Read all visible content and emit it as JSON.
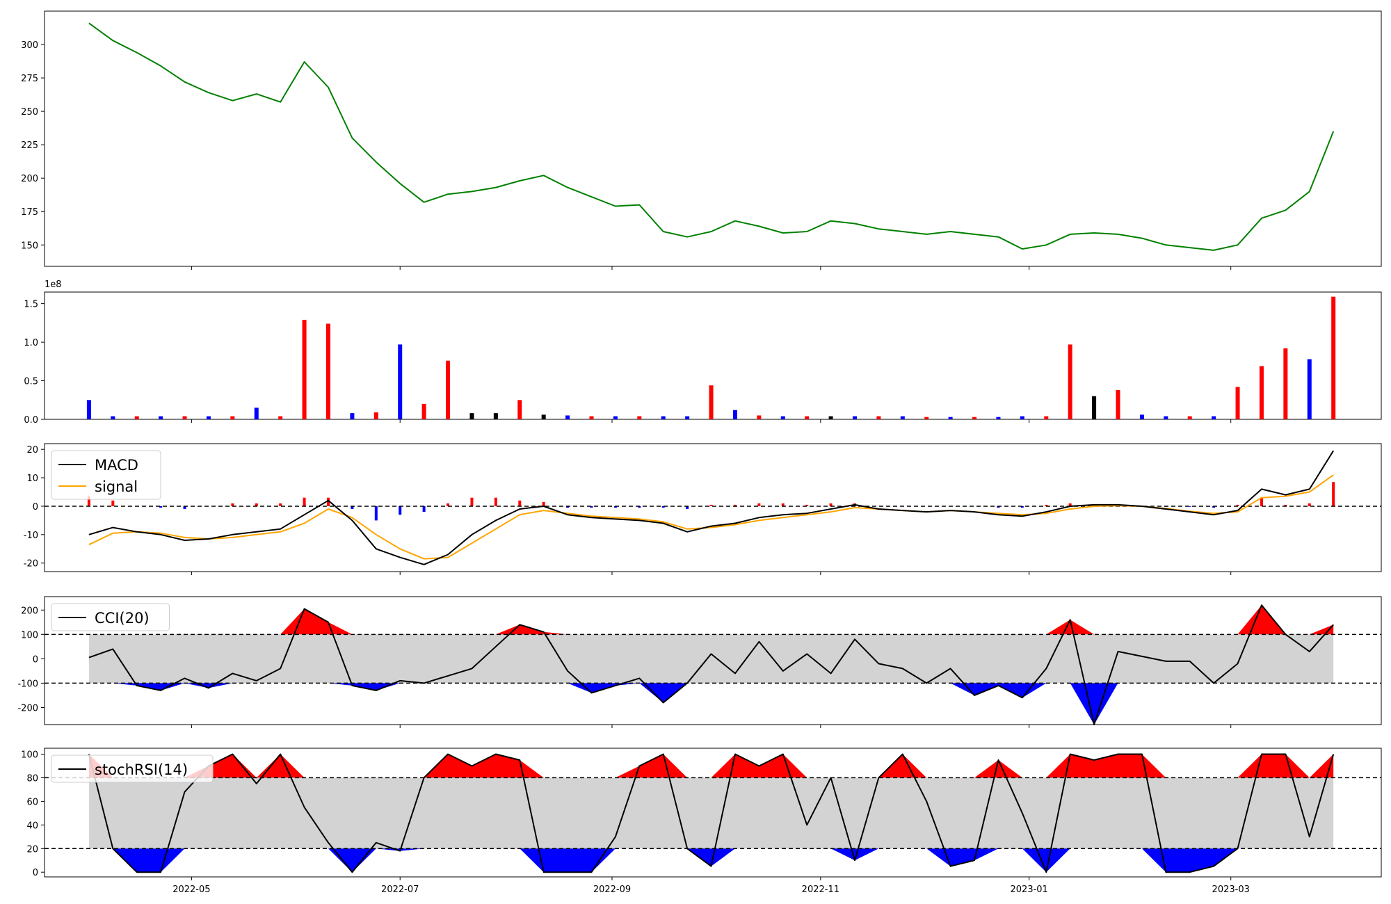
{
  "x_dates": [
    "2022-04-01",
    "2022-04-08",
    "2022-04-15",
    "2022-04-22",
    "2022-04-29",
    "2022-05-06",
    "2022-05-13",
    "2022-05-20",
    "2022-05-27",
    "2022-06-03",
    "2022-06-10",
    "2022-06-17",
    "2022-06-24",
    "2022-07-01",
    "2022-07-08",
    "2022-07-15",
    "2022-07-22",
    "2022-07-29",
    "2022-08-05",
    "2022-08-12",
    "2022-08-19",
    "2022-08-26",
    "2022-09-02",
    "2022-09-09",
    "2022-09-16",
    "2022-09-23",
    "2022-09-30",
    "2022-10-07",
    "2022-10-14",
    "2022-10-21",
    "2022-10-28",
    "2022-11-04",
    "2022-11-11",
    "2022-11-18",
    "2022-11-25",
    "2022-12-02",
    "2022-12-09",
    "2022-12-16",
    "2022-12-23",
    "2022-12-30",
    "2023-01-06",
    "2023-01-13",
    "2023-01-20",
    "2023-01-27",
    "2023-02-03",
    "2023-02-10",
    "2023-02-17",
    "2023-02-24",
    "2023-03-03",
    "2023-03-10",
    "2023-03-17",
    "2023-03-24",
    "2023-03-31"
  ],
  "x_ticks": [
    "2022-05",
    "2022-07",
    "2022-09",
    "2022-11",
    "2023-01",
    "2023-03"
  ],
  "chart_data": [
    {
      "panel": "price",
      "type": "line",
      "color": "#008000",
      "x": [
        "2022-04-01",
        "2022-04-08",
        "2022-04-15",
        "2022-04-22",
        "2022-04-29",
        "2022-05-06",
        "2022-05-13",
        "2022-05-20",
        "2022-05-27",
        "2022-06-03",
        "2022-06-10",
        "2022-06-17",
        "2022-06-24",
        "2022-07-01",
        "2022-07-08",
        "2022-07-15",
        "2022-07-22",
        "2022-07-29",
        "2022-08-05",
        "2022-08-12",
        "2022-08-19",
        "2022-08-26",
        "2022-09-02",
        "2022-09-09",
        "2022-09-16",
        "2022-09-23",
        "2022-09-30",
        "2022-10-07",
        "2022-10-14",
        "2022-10-21",
        "2022-10-28",
        "2022-11-04",
        "2022-11-11",
        "2022-11-18",
        "2022-11-25",
        "2022-12-02",
        "2022-12-09",
        "2022-12-16",
        "2022-12-23",
        "2022-12-30",
        "2023-01-06",
        "2023-01-13",
        "2023-01-20",
        "2023-01-27",
        "2023-02-03",
        "2023-02-10",
        "2023-02-17",
        "2023-02-24",
        "2023-03-03",
        "2023-03-10",
        "2023-03-17",
        "2023-03-24",
        "2023-03-31"
      ],
      "values": [
        316,
        303,
        294,
        284,
        272,
        264,
        258,
        263,
        257,
        287,
        268,
        230,
        212,
        196,
        182,
        188,
        190,
        193,
        198,
        202,
        193,
        186,
        179,
        180,
        160,
        156,
        160,
        168,
        164,
        159,
        160,
        168,
        166,
        162,
        160,
        158,
        160,
        158,
        156,
        147,
        150,
        158,
        159,
        158,
        155,
        150,
        148,
        146,
        150,
        170,
        176,
        190,
        235
      ],
      "yticks": [
        150,
        175,
        200,
        225,
        250,
        275,
        300
      ],
      "ylim": [
        134,
        325
      ]
    },
    {
      "panel": "volume",
      "type": "bar",
      "ylim": [
        0,
        1.65
      ],
      "yticks": [
        "0.0",
        "0.5",
        "1.0",
        "1.5"
      ],
      "scale_label": "1e8",
      "x": [
        "2022-04-01",
        "2022-04-08",
        "2022-04-15",
        "2022-04-22",
        "2022-04-29",
        "2022-05-06",
        "2022-05-13",
        "2022-05-20",
        "2022-05-27",
        "2022-06-03",
        "2022-06-10",
        "2022-06-17",
        "2022-06-24",
        "2022-07-01",
        "2022-07-08",
        "2022-07-15",
        "2022-07-22",
        "2022-07-29",
        "2022-08-05",
        "2022-08-12",
        "2022-08-19",
        "2022-08-26",
        "2022-09-02",
        "2022-09-09",
        "2022-09-16",
        "2022-09-23",
        "2022-09-30",
        "2022-10-07",
        "2022-10-14",
        "2022-10-21",
        "2022-10-28",
        "2022-11-04",
        "2022-11-11",
        "2022-11-18",
        "2022-11-25",
        "2022-12-02",
        "2022-12-09",
        "2022-12-16",
        "2022-12-23",
        "2022-12-30",
        "2023-01-06",
        "2023-01-13",
        "2023-01-20",
        "2023-01-27",
        "2023-02-03",
        "2023-02-10",
        "2023-02-17",
        "2023-02-24",
        "2023-03-03",
        "2023-03-10",
        "2023-03-17",
        "2023-03-24",
        "2023-03-31"
      ],
      "values": [
        0.25,
        0.04,
        0.04,
        0.04,
        0.04,
        0.04,
        0.04,
        0.15,
        0.04,
        1.29,
        1.24,
        0.08,
        0.09,
        0.97,
        0.2,
        0.76,
        0.08,
        0.08,
        0.25,
        0.06,
        0.05,
        0.04,
        0.04,
        0.04,
        0.04,
        0.04,
        0.44,
        0.12,
        0.05,
        0.04,
        0.04,
        0.04,
        0.04,
        0.04,
        0.04,
        0.03,
        0.03,
        0.03,
        0.03,
        0.04,
        0.04,
        0.97,
        0.3,
        0.38,
        0.06,
        0.04,
        0.04,
        0.04,
        0.42,
        0.69,
        0.92,
        0.78,
        1.59
      ],
      "colors": [
        "blue",
        "blue",
        "red",
        "blue",
        "red",
        "blue",
        "red",
        "blue",
        "red",
        "red",
        "red",
        "blue",
        "red",
        "blue",
        "red",
        "red",
        "black",
        "black",
        "red",
        "black",
        "blue",
        "red",
        "blue",
        "red",
        "blue",
        "blue",
        "red",
        "blue",
        "red",
        "blue",
        "red",
        "black",
        "blue",
        "red",
        "blue",
        "red",
        "blue",
        "red",
        "blue",
        "blue",
        "red",
        "red",
        "black",
        "red",
        "blue",
        "blue",
        "red",
        "blue",
        "red",
        "red",
        "red",
        "blue",
        "red"
      ]
    },
    {
      "panel": "macd",
      "type": "line",
      "legend": [
        "MACD",
        "signal"
      ],
      "yticks": [
        -20,
        -10,
        0,
        10,
        20
      ],
      "ylim": [
        -23,
        22
      ],
      "x": [
        "2022-04-01",
        "2022-04-08",
        "2022-04-15",
        "2022-04-22",
        "2022-04-29",
        "2022-05-06",
        "2022-05-13",
        "2022-05-20",
        "2022-05-27",
        "2022-06-03",
        "2022-06-10",
        "2022-06-17",
        "2022-06-24",
        "2022-07-01",
        "2022-07-08",
        "2022-07-15",
        "2022-07-22",
        "2022-07-29",
        "2022-08-05",
        "2022-08-12",
        "2022-08-19",
        "2022-08-26",
        "2022-09-02",
        "2022-09-09",
        "2022-09-16",
        "2022-09-23",
        "2022-09-30",
        "2022-10-07",
        "2022-10-14",
        "2022-10-21",
        "2022-10-28",
        "2022-11-04",
        "2022-11-11",
        "2022-11-18",
        "2022-11-25",
        "2022-12-02",
        "2022-12-09",
        "2022-12-16",
        "2022-12-23",
        "2022-12-30",
        "2023-01-06",
        "2023-01-13",
        "2023-01-20",
        "2023-01-27",
        "2023-02-03",
        "2023-02-10",
        "2023-02-17",
        "2023-02-24",
        "2023-03-03",
        "2023-03-10",
        "2023-03-17",
        "2023-03-24",
        "2023-03-31"
      ],
      "series": [
        {
          "name": "MACD",
          "color": "#000000",
          "values": [
            -10,
            -7.5,
            -9,
            -10,
            -12,
            -11.5,
            -10,
            -9,
            -8,
            -3,
            2,
            -5,
            -15,
            -18,
            -20.5,
            -17,
            -10,
            -5,
            -1,
            0,
            -3,
            -4,
            -4.5,
            -5,
            -6,
            -9,
            -7,
            -6,
            -4,
            -3,
            -2.5,
            -1,
            0.5,
            -1,
            -1.5,
            -2,
            -1.5,
            -2,
            -3,
            -3.5,
            -2,
            0,
            0.5,
            0.5,
            0,
            -1,
            -2,
            -3,
            -1.5,
            6,
            4,
            6,
            19.5
          ]
        },
        {
          "name": "signal",
          "color": "#FFA500",
          "values": [
            -13.5,
            -9.5,
            -9,
            -9.5,
            -11,
            -11.5,
            -11,
            -10,
            -9,
            -6,
            -1,
            -4,
            -10,
            -15,
            -18.5,
            -18,
            -13,
            -8,
            -3,
            -1.5,
            -2.5,
            -3.5,
            -4,
            -4.5,
            -5.5,
            -8,
            -7.5,
            -6.5,
            -5,
            -4,
            -3,
            -2,
            -0.5,
            -1,
            -1.5,
            -2,
            -1.5,
            -2,
            -2.5,
            -3,
            -2.5,
            -1,
            0,
            0.2,
            0,
            -0.8,
            -1.8,
            -2.5,
            -2,
            3,
            3.5,
            5,
            11
          ]
        },
        {
          "name": "histogram",
          "values": [
            3.5,
            2,
            0,
            -0.5,
            -1,
            0,
            1,
            1,
            1,
            3,
            3,
            -1,
            -5,
            -3,
            -2,
            1,
            3,
            3,
            2,
            1.5,
            -0.5,
            -0.5,
            -0.5,
            -0.5,
            -0.5,
            -1,
            0.5,
            0.5,
            1,
            1,
            0.5,
            1,
            1,
            0,
            0,
            0,
            0,
            0,
            -0.5,
            -0.5,
            0.5,
            1,
            0.5,
            0.3,
            0,
            -0.2,
            -0.2,
            -0.5,
            0.5,
            3,
            0.5,
            1,
            8.5
          ]
        }
      ]
    },
    {
      "panel": "cci",
      "type": "area",
      "legend": "CCI(20)",
      "yticks": [
        -200,
        -100,
        0,
        100,
        200
      ],
      "ylim": [
        -270,
        255
      ],
      "thresholds": [
        -100,
        100
      ],
      "colors": {
        "above": "#FF0000",
        "below": "#0000FF",
        "band": "#D3D3D3"
      },
      "x": [
        "2022-04-01",
        "2022-04-08",
        "2022-04-15",
        "2022-04-22",
        "2022-04-29",
        "2022-05-06",
        "2022-05-13",
        "2022-05-20",
        "2022-05-27",
        "2022-06-03",
        "2022-06-10",
        "2022-06-17",
        "2022-06-24",
        "2022-07-01",
        "2022-07-08",
        "2022-07-15",
        "2022-07-22",
        "2022-07-29",
        "2022-08-05",
        "2022-08-12",
        "2022-08-19",
        "2022-08-26",
        "2022-09-02",
        "2022-09-09",
        "2022-09-16",
        "2022-09-23",
        "2022-09-30",
        "2022-10-07",
        "2022-10-14",
        "2022-10-21",
        "2022-10-28",
        "2022-11-04",
        "2022-11-11",
        "2022-11-18",
        "2022-11-25",
        "2022-12-02",
        "2022-12-09",
        "2022-12-16",
        "2022-12-23",
        "2022-12-30",
        "2023-01-06",
        "2023-01-13",
        "2023-01-20",
        "2023-01-27",
        "2023-02-03",
        "2023-02-10",
        "2023-02-17",
        "2023-02-24",
        "2023-03-03",
        "2023-03-10",
        "2023-03-17",
        "2023-03-24",
        "2023-03-31"
      ],
      "values": [
        5,
        40,
        -110,
        -130,
        -80,
        -120,
        -60,
        -90,
        -40,
        205,
        150,
        -110,
        -130,
        -90,
        -100,
        -70,
        -40,
        50,
        140,
        110,
        -50,
        -140,
        -110,
        -80,
        -180,
        -100,
        20,
        -60,
        70,
        -50,
        20,
        -60,
        80,
        -20,
        -40,
        -100,
        -40,
        -150,
        -110,
        -160,
        -40,
        160,
        -270,
        30,
        10,
        -10,
        -10,
        -100,
        -20,
        220,
        100,
        30,
        140
      ]
    },
    {
      "panel": "stochrsi",
      "type": "area",
      "legend": "stochRSI(14)",
      "yticks": [
        0,
        20,
        40,
        60,
        80,
        100
      ],
      "ylim": [
        -4,
        105
      ],
      "thresholds": [
        20,
        80
      ],
      "colors": {
        "above": "#FF0000",
        "below": "#0000FF",
        "band": "#D3D3D3"
      },
      "x": [
        "2022-04-01",
        "2022-04-08",
        "2022-04-15",
        "2022-04-22",
        "2022-04-29",
        "2022-05-06",
        "2022-05-13",
        "2022-05-20",
        "2022-05-27",
        "2022-06-03",
        "2022-06-10",
        "2022-06-17",
        "2022-06-24",
        "2022-07-01",
        "2022-07-08",
        "2022-07-15",
        "2022-07-22",
        "2022-07-29",
        "2022-08-05",
        "2022-08-12",
        "2022-08-19",
        "2022-08-26",
        "2022-09-02",
        "2022-09-09",
        "2022-09-16",
        "2022-09-23",
        "2022-09-30",
        "2022-10-07",
        "2022-10-14",
        "2022-10-21",
        "2022-10-28",
        "2022-11-04",
        "2022-11-11",
        "2022-11-18",
        "2022-11-25",
        "2022-12-02",
        "2022-12-09",
        "2022-12-16",
        "2022-12-23",
        "2022-12-30",
        "2023-01-06",
        "2023-01-13",
        "2023-01-20",
        "2023-01-27",
        "2023-02-03",
        "2023-02-10",
        "2023-02-17",
        "2023-02-24",
        "2023-03-03",
        "2023-03-10",
        "2023-03-17",
        "2023-03-24",
        "2023-03-31"
      ],
      "values": [
        100,
        20,
        0,
        0,
        68,
        90,
        100,
        75,
        100,
        55,
        25,
        0,
        25,
        18,
        80,
        100,
        90,
        100,
        95,
        0,
        0,
        0,
        30,
        90,
        100,
        20,
        5,
        100,
        90,
        100,
        40,
        80,
        10,
        80,
        100,
        60,
        5,
        10,
        95,
        50,
        0,
        100,
        95,
        100,
        100,
        0,
        0,
        5,
        20,
        100,
        100,
        30,
        100
      ]
    }
  ]
}
